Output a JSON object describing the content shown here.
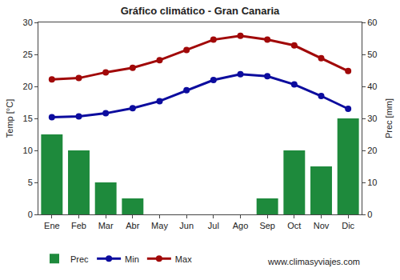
{
  "chart_data": {
    "type": "bar",
    "title": "Gráfico climático - Gran Canaria",
    "categories": [
      "Ene",
      "Feb",
      "Mar",
      "Abr",
      "May",
      "Jun",
      "Jul",
      "Ago",
      "Sep",
      "Oct",
      "Nov",
      "Dic"
    ],
    "series": [
      {
        "name": "Prec",
        "type": "bar",
        "axis": "y2",
        "color": "#1e8a3c",
        "values": [
          25,
          20,
          10,
          5,
          0,
          0,
          0,
          0,
          5,
          20,
          15,
          30
        ]
      },
      {
        "name": "Min",
        "type": "line",
        "color": "#0c0c9e",
        "marker": "circle",
        "values": [
          15.2,
          15.3,
          15.8,
          16.6,
          17.7,
          19.4,
          21.0,
          21.9,
          21.6,
          20.3,
          18.5,
          16.5
        ]
      },
      {
        "name": "Max",
        "type": "line",
        "color": "#a10808",
        "marker": "circle",
        "values": [
          21.1,
          21.3,
          22.2,
          22.9,
          24.1,
          25.7,
          27.3,
          27.9,
          27.3,
          26.4,
          24.4,
          22.4
        ]
      }
    ],
    "y_label": "Temp [°C]",
    "y2_label": "Prec [mm]",
    "ylim": [
      0,
      30
    ],
    "yticks": [
      0,
      5,
      10,
      15,
      20,
      25,
      30
    ],
    "y2lim": [
      0,
      60
    ],
    "y2ticks": [
      0,
      10,
      20,
      30,
      40,
      50,
      60
    ],
    "grid": false,
    "legend": "bottom",
    "annotations": [
      "www.climasyviajes.com"
    ]
  }
}
